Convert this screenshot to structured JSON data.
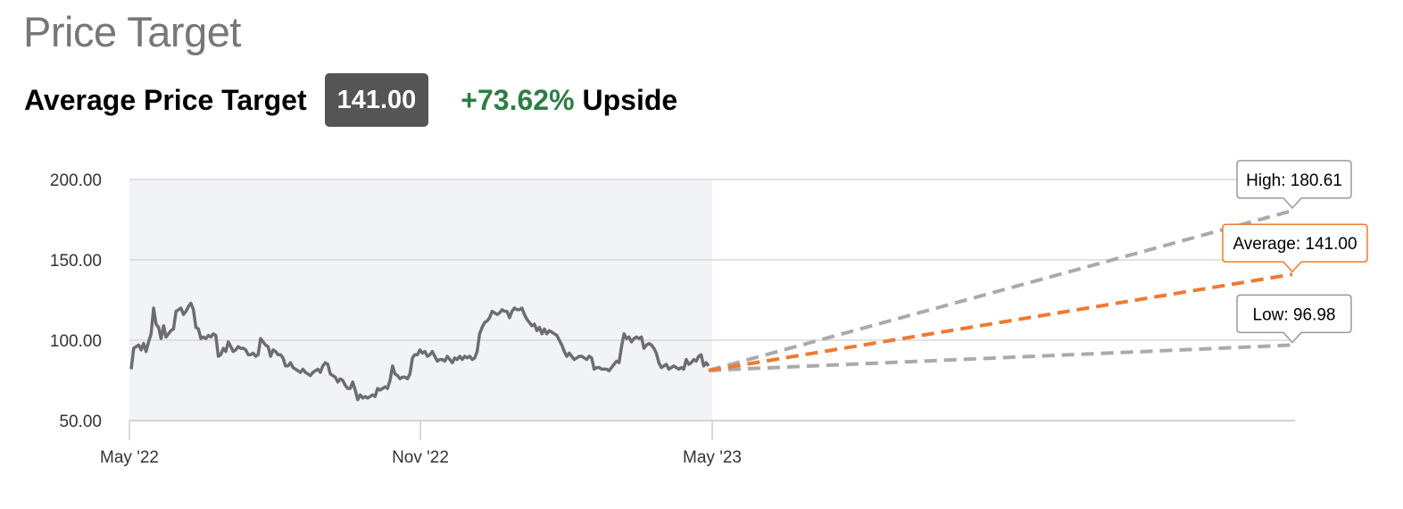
{
  "header": {
    "title": "Price Target",
    "average_label": "Average Price Target",
    "average_value": "141.00",
    "upside_percent": "+73.62%",
    "upside_word": "Upside"
  },
  "colors": {
    "upside": "#2e7d44",
    "badge": "#555555",
    "history_line": "#6d6d6d",
    "history_band": "#f2f3f7",
    "average_line": "#ee7a33",
    "high_low_line": "#aaaaaa",
    "grid": "#d8d8d8"
  },
  "chart_data": {
    "type": "line",
    "title": "",
    "xlabel": "",
    "ylabel": "",
    "ylim": [
      50,
      200
    ],
    "y_ticks": [
      "200.00",
      "150.00",
      "100.00",
      "50.00"
    ],
    "x_ticks": [
      "May '22",
      "Nov '22",
      "May '23"
    ],
    "history_start": "2022-05",
    "history_end": "2023-05",
    "forecast_end": "2024-05",
    "history": [
      82,
      95,
      96,
      97,
      94,
      98,
      93,
      99,
      104,
      120,
      110,
      108,
      101,
      109,
      102,
      104,
      106,
      107,
      118,
      119,
      120,
      116,
      118,
      121,
      123,
      119,
      108,
      107,
      101,
      102,
      101,
      103,
      102,
      104,
      103,
      90,
      91,
      95,
      93,
      99,
      96,
      93,
      94,
      96,
      95,
      95,
      94,
      91,
      91,
      92,
      90,
      91,
      101,
      99,
      97,
      96,
      90,
      94,
      93,
      91,
      91,
      89,
      84,
      84,
      86,
      83,
      82,
      81,
      80,
      82,
      80,
      79,
      78,
      80,
      81,
      82,
      80,
      84,
      86,
      85,
      79,
      78,
      77,
      74,
      76,
      75,
      72,
      70,
      70,
      74,
      69,
      63,
      66,
      64,
      65,
      64,
      65,
      66,
      65,
      70,
      69,
      70,
      71,
      70,
      75,
      84,
      79,
      78,
      76,
      77,
      77,
      76,
      79,
      89,
      91,
      91,
      94,
      92,
      93,
      90,
      91,
      93,
      90,
      87,
      88,
      88,
      87,
      90,
      88,
      86,
      89,
      88,
      90,
      88,
      90,
      89,
      90,
      88,
      89,
      93,
      104,
      108,
      111,
      112,
      114,
      118,
      117,
      116,
      117,
      119,
      118,
      118,
      114,
      118,
      120,
      119,
      119,
      120,
      116,
      113,
      111,
      109,
      110,
      106,
      108,
      104,
      107,
      104,
      106,
      105,
      104,
      103,
      100,
      97,
      93,
      90,
      92,
      90,
      88,
      89,
      90,
      90,
      89,
      88,
      90,
      89,
      82,
      83,
      83,
      82,
      82,
      82,
      81,
      83,
      85,
      87,
      86,
      96,
      104,
      101,
      102,
      99,
      101,
      102,
      101,
      102,
      95,
      97,
      98,
      97,
      95,
      92,
      86,
      83,
      84,
      85,
      82,
      83,
      84,
      83,
      82,
      83,
      82,
      88,
      85,
      86,
      88,
      87,
      90,
      91,
      84,
      86,
      84
    ],
    "last_price": 81.21,
    "targets": [
      {
        "name": "High",
        "value": 180.61,
        "label": "High: 180.61"
      },
      {
        "name": "Average",
        "value": 141.0,
        "label": "Average: 141.00"
      },
      {
        "name": "Low",
        "value": 96.98,
        "label": "Low: 96.98"
      }
    ],
    "grid": true,
    "legend": "none"
  }
}
